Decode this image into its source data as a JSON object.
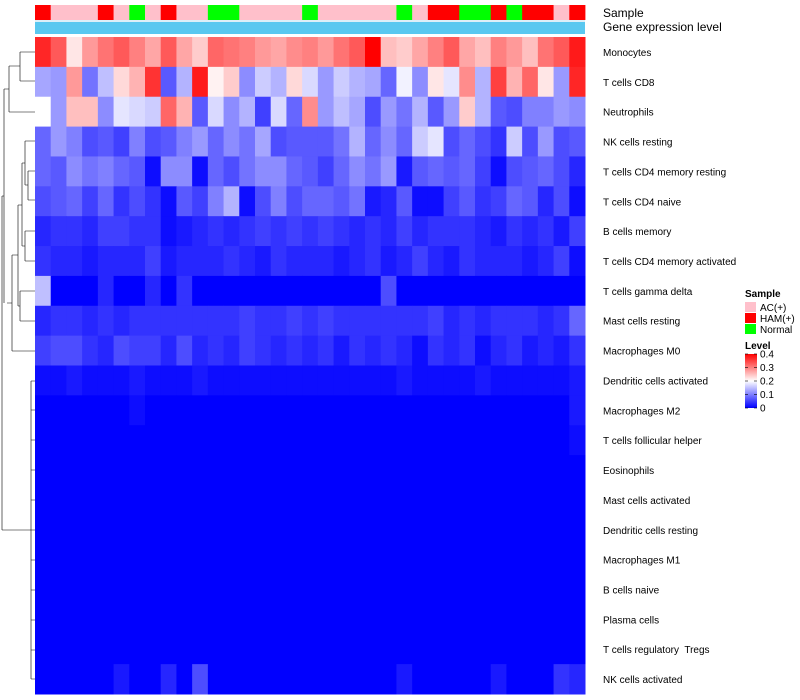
{
  "chart_data": {
    "type": "heatmap",
    "title": "",
    "annotation_tracks": [
      {
        "name": "Sample",
        "label": "Sample"
      },
      {
        "name": "Gene expression level",
        "label": "Gene expression level"
      }
    ],
    "rows": [
      "Monocytes",
      "T cells CD8",
      "Neutrophils",
      "NK cells resting",
      "T cells CD4 memory resting",
      "T cells CD4 naive",
      "B cells memory",
      "T cells CD4 memory activated",
      "T cells gamma delta",
      "Mast cells resting",
      "Macrophages M0",
      "Dendritic cells activated",
      "Macrophages M2",
      "T cells follicular helper",
      "Eosinophils",
      "Mast cells activated",
      "Dendritic cells resting",
      "Macrophages M1",
      "B cells naive",
      "Plasma cells",
      "T cells regulatory  Tregs",
      "NK cells activated"
    ],
    "sample_groups": [
      "HAM",
      "AC",
      "AC",
      "AC",
      "HAM",
      "AC",
      "Normal",
      "AC",
      "HAM",
      "AC",
      "AC",
      "Normal",
      "Normal",
      "AC",
      "AC",
      "AC",
      "AC",
      "Normal",
      "AC",
      "AC",
      "AC",
      "AC",
      "AC",
      "Normal",
      "AC",
      "HAM",
      "HAM",
      "Normal",
      "Normal",
      "HAM",
      "Normal",
      "HAM",
      "HAM",
      "AC",
      "HAM"
    ],
    "values": [
      [
        0.37,
        0.33,
        0.22,
        0.28,
        0.31,
        0.33,
        0.3,
        0.27,
        0.33,
        0.27,
        0.24,
        0.32,
        0.31,
        0.3,
        0.28,
        0.27,
        0.29,
        0.3,
        0.28,
        0.31,
        0.33,
        0.4,
        0.25,
        0.24,
        0.27,
        0.3,
        0.33,
        0.27,
        0.25,
        0.3,
        0.28,
        0.25,
        0.31,
        0.33,
        0.38
      ],
      [
        0.13,
        0.12,
        0.28,
        0.09,
        0.15,
        0.23,
        0.26,
        0.36,
        0.07,
        0.14,
        0.38,
        0.21,
        0.24,
        0.11,
        0.16,
        0.14,
        0.23,
        0.17,
        0.12,
        0.16,
        0.14,
        0.13,
        0.08,
        0.19,
        0.11,
        0.22,
        0.18,
        0.29,
        0.14,
        0.35,
        0.26,
        0.32,
        0.22,
        0.12,
        0.37
      ],
      [
        0.2,
        0.12,
        0.25,
        0.25,
        0.11,
        0.18,
        0.17,
        0.16,
        0.32,
        0.26,
        0.07,
        0.17,
        0.11,
        0.14,
        0.05,
        0.17,
        0.08,
        0.29,
        0.12,
        0.15,
        0.13,
        0.06,
        0.12,
        0.09,
        0.14,
        0.07,
        0.12,
        0.24,
        0.14,
        0.07,
        0.06,
        0.1,
        0.1,
        0.12,
        0.11
      ],
      [
        0.08,
        0.12,
        0.1,
        0.06,
        0.07,
        0.05,
        0.1,
        0.06,
        0.07,
        0.1,
        0.12,
        0.08,
        0.11,
        0.09,
        0.13,
        0.06,
        0.07,
        0.07,
        0.07,
        0.09,
        0.14,
        0.08,
        0.11,
        0.08,
        0.16,
        0.18,
        0.06,
        0.08,
        0.06,
        0.04,
        0.16,
        0.06,
        0.12,
        0.06,
        0.07
      ],
      [
        0.08,
        0.07,
        0.11,
        0.09,
        0.1,
        0.08,
        0.07,
        0.01,
        0.11,
        0.11,
        0.01,
        0.08,
        0.06,
        0.09,
        0.11,
        0.11,
        0.08,
        0.07,
        0.05,
        0.08,
        0.11,
        0.09,
        0.12,
        0.02,
        0.07,
        0.08,
        0.07,
        0.08,
        0.05,
        0.01,
        0.06,
        0.07,
        0.08,
        0.06,
        0.03
      ],
      [
        0.06,
        0.07,
        0.08,
        0.05,
        0.08,
        0.04,
        0.06,
        0.04,
        0.01,
        0.07,
        0.05,
        0.1,
        0.14,
        0.01,
        0.06,
        0.1,
        0.06,
        0.08,
        0.08,
        0.07,
        0.09,
        0.02,
        0.03,
        0.07,
        0.01,
        0.01,
        0.05,
        0.07,
        0.04,
        0.05,
        0.08,
        0.07,
        0.03,
        0.06,
        0.01
      ],
      [
        0.03,
        0.04,
        0.04,
        0.03,
        0.05,
        0.05,
        0.04,
        0.04,
        0.01,
        0.02,
        0.03,
        0.04,
        0.03,
        0.04,
        0.05,
        0.04,
        0.05,
        0.04,
        0.05,
        0.04,
        0.03,
        0.04,
        0.03,
        0.05,
        0.03,
        0.04,
        0.04,
        0.04,
        0.03,
        0.02,
        0.04,
        0.03,
        0.04,
        0.02,
        0.05
      ],
      [
        0.04,
        0.03,
        0.03,
        0.02,
        0.03,
        0.03,
        0.03,
        0.05,
        0.02,
        0.03,
        0.03,
        0.03,
        0.04,
        0.03,
        0.02,
        0.04,
        0.03,
        0.03,
        0.03,
        0.02,
        0.03,
        0.04,
        0.02,
        0.03,
        0.05,
        0.03,
        0.02,
        0.04,
        0.03,
        0.03,
        0.03,
        0.02,
        0.03,
        0.05,
        0.01
      ],
      [
        0.15,
        0.0,
        0.0,
        0.0,
        0.03,
        0.0,
        0.0,
        0.03,
        0.0,
        0.04,
        0.0,
        0.0,
        0.0,
        0.0,
        0.0,
        0.0,
        0.0,
        0.0,
        0.0,
        0.0,
        0.0,
        0.0,
        0.06,
        0.0,
        0.0,
        0.0,
        0.0,
        0.0,
        0.0,
        0.0,
        0.0,
        0.0,
        0.0,
        0.0,
        0.0
      ],
      [
        0.03,
        0.04,
        0.04,
        0.03,
        0.04,
        0.03,
        0.04,
        0.04,
        0.04,
        0.04,
        0.04,
        0.04,
        0.04,
        0.05,
        0.04,
        0.04,
        0.05,
        0.04,
        0.05,
        0.04,
        0.04,
        0.04,
        0.04,
        0.04,
        0.04,
        0.05,
        0.03,
        0.04,
        0.03,
        0.04,
        0.04,
        0.04,
        0.03,
        0.04,
        0.08
      ],
      [
        0.05,
        0.06,
        0.06,
        0.04,
        0.03,
        0.06,
        0.05,
        0.05,
        0.03,
        0.06,
        0.03,
        0.04,
        0.03,
        0.05,
        0.04,
        0.03,
        0.04,
        0.03,
        0.04,
        0.02,
        0.04,
        0.03,
        0.04,
        0.03,
        0.01,
        0.04,
        0.03,
        0.04,
        0.01,
        0.03,
        0.04,
        0.02,
        0.03,
        0.02,
        0.04
      ],
      [
        0.01,
        0.01,
        0.02,
        0.01,
        0.01,
        0.01,
        0.02,
        0.01,
        0.01,
        0.01,
        0.02,
        0.01,
        0.01,
        0.01,
        0.01,
        0.01,
        0.01,
        0.01,
        0.01,
        0.01,
        0.01,
        0.01,
        0.01,
        0.02,
        0.01,
        0.01,
        0.01,
        0.01,
        0.02,
        0.01,
        0.01,
        0.01,
        0.01,
        0.01,
        0.02
      ],
      [
        0.0,
        0.0,
        0.0,
        0.0,
        0.0,
        0.0,
        0.01,
        0.0,
        0.0,
        0.0,
        0.0,
        0.0,
        0.0,
        0.0,
        0.0,
        0.0,
        0.0,
        0.0,
        0.0,
        0.0,
        0.0,
        0.0,
        0.0,
        0.0,
        0.0,
        0.0,
        0.0,
        0.0,
        0.0,
        0.0,
        0.0,
        0.0,
        0.0,
        0.0,
        0.02
      ],
      [
        0.0,
        0.0,
        0.0,
        0.0,
        0.0,
        0.0,
        0.0,
        0.0,
        0.0,
        0.0,
        0.0,
        0.0,
        0.0,
        0.0,
        0.0,
        0.0,
        0.0,
        0.0,
        0.0,
        0.0,
        0.0,
        0.0,
        0.0,
        0.0,
        0.0,
        0.0,
        0.0,
        0.0,
        0.0,
        0.0,
        0.0,
        0.0,
        0.0,
        0.0,
        0.01
      ],
      [
        0.0,
        0.0,
        0.0,
        0.0,
        0.0,
        0.0,
        0.0,
        0.0,
        0.0,
        0.0,
        0.0,
        0.0,
        0.0,
        0.0,
        0.0,
        0.0,
        0.0,
        0.0,
        0.0,
        0.0,
        0.0,
        0.0,
        0.0,
        0.0,
        0.0,
        0.0,
        0.0,
        0.0,
        0.0,
        0.0,
        0.0,
        0.0,
        0.0,
        0.0,
        0.0
      ],
      [
        0.0,
        0.0,
        0.0,
        0.0,
        0.0,
        0.0,
        0.0,
        0.0,
        0.0,
        0.0,
        0.0,
        0.0,
        0.0,
        0.0,
        0.0,
        0.0,
        0.0,
        0.0,
        0.0,
        0.0,
        0.0,
        0.0,
        0.0,
        0.0,
        0.0,
        0.0,
        0.0,
        0.0,
        0.0,
        0.0,
        0.0,
        0.0,
        0.0,
        0.0,
        0.0
      ],
      [
        0.0,
        0.0,
        0.0,
        0.0,
        0.0,
        0.0,
        0.0,
        0.0,
        0.0,
        0.0,
        0.0,
        0.0,
        0.0,
        0.0,
        0.0,
        0.0,
        0.0,
        0.0,
        0.0,
        0.0,
        0.0,
        0.0,
        0.0,
        0.0,
        0.0,
        0.0,
        0.0,
        0.0,
        0.0,
        0.0,
        0.0,
        0.0,
        0.0,
        0.0,
        0.0
      ],
      [
        0.0,
        0.0,
        0.0,
        0.0,
        0.0,
        0.0,
        0.0,
        0.0,
        0.0,
        0.0,
        0.0,
        0.0,
        0.0,
        0.0,
        0.0,
        0.0,
        0.0,
        0.0,
        0.0,
        0.0,
        0.0,
        0.0,
        0.0,
        0.0,
        0.0,
        0.0,
        0.0,
        0.0,
        0.0,
        0.0,
        0.0,
        0.0,
        0.0,
        0.0,
        0.0
      ],
      [
        0.0,
        0.0,
        0.0,
        0.0,
        0.0,
        0.0,
        0.0,
        0.0,
        0.0,
        0.0,
        0.0,
        0.0,
        0.0,
        0.0,
        0.0,
        0.0,
        0.0,
        0.0,
        0.0,
        0.0,
        0.0,
        0.0,
        0.0,
        0.0,
        0.0,
        0.0,
        0.0,
        0.0,
        0.0,
        0.0,
        0.0,
        0.0,
        0.0,
        0.0,
        0.0
      ],
      [
        0.0,
        0.0,
        0.0,
        0.0,
        0.0,
        0.0,
        0.0,
        0.0,
        0.0,
        0.0,
        0.0,
        0.0,
        0.0,
        0.0,
        0.0,
        0.0,
        0.0,
        0.0,
        0.0,
        0.0,
        0.0,
        0.0,
        0.0,
        0.0,
        0.0,
        0.0,
        0.0,
        0.0,
        0.0,
        0.0,
        0.0,
        0.0,
        0.0,
        0.0,
        0.0
      ],
      [
        0.0,
        0.0,
        0.0,
        0.0,
        0.0,
        0.0,
        0.0,
        0.0,
        0.0,
        0.0,
        0.0,
        0.0,
        0.0,
        0.0,
        0.0,
        0.0,
        0.0,
        0.0,
        0.0,
        0.0,
        0.0,
        0.0,
        0.0,
        0.0,
        0.0,
        0.0,
        0.0,
        0.0,
        0.0,
        0.0,
        0.0,
        0.0,
        0.0,
        0.0,
        0.0
      ],
      [
        0.0,
        0.0,
        0.0,
        0.0,
        0.0,
        0.02,
        0.0,
        0.0,
        0.03,
        0.0,
        0.06,
        0.0,
        0.0,
        0.0,
        0.0,
        0.0,
        0.0,
        0.0,
        0.0,
        0.0,
        0.0,
        0.0,
        0.0,
        0.02,
        0.0,
        0.0,
        0.0,
        0.0,
        0.0,
        0.02,
        0.0,
        0.0,
        0.0,
        0.04,
        0.03
      ]
    ],
    "value_range": [
      0,
      0.4
    ],
    "color_scale": {
      "low": "#0000FF",
      "mid": "#FFFFFF",
      "high": "#FF0000",
      "mid_value": 0.2
    },
    "legend": {
      "sample_title": "Sample",
      "sample_entries": [
        {
          "key": "AC",
          "label": "AC(+)",
          "color": "#FFC0CB"
        },
        {
          "key": "HAM",
          "label": "HAM(+)",
          "color": "#FF0000"
        },
        {
          "key": "Normal",
          "label": "Normal",
          "color": "#00FF00"
        }
      ],
      "level_title": "Level",
      "level_ticks": [
        "0.4",
        "0.3",
        "0.2",
        "0.1",
        "0"
      ],
      "level_tick_values": [
        0.4,
        0.3,
        0.2,
        0.1,
        0.0
      ]
    },
    "gene_expression_color": "#5AC8F0",
    "gene_expression_top_color": "#DDEFF8",
    "legend_placement": "right"
  }
}
